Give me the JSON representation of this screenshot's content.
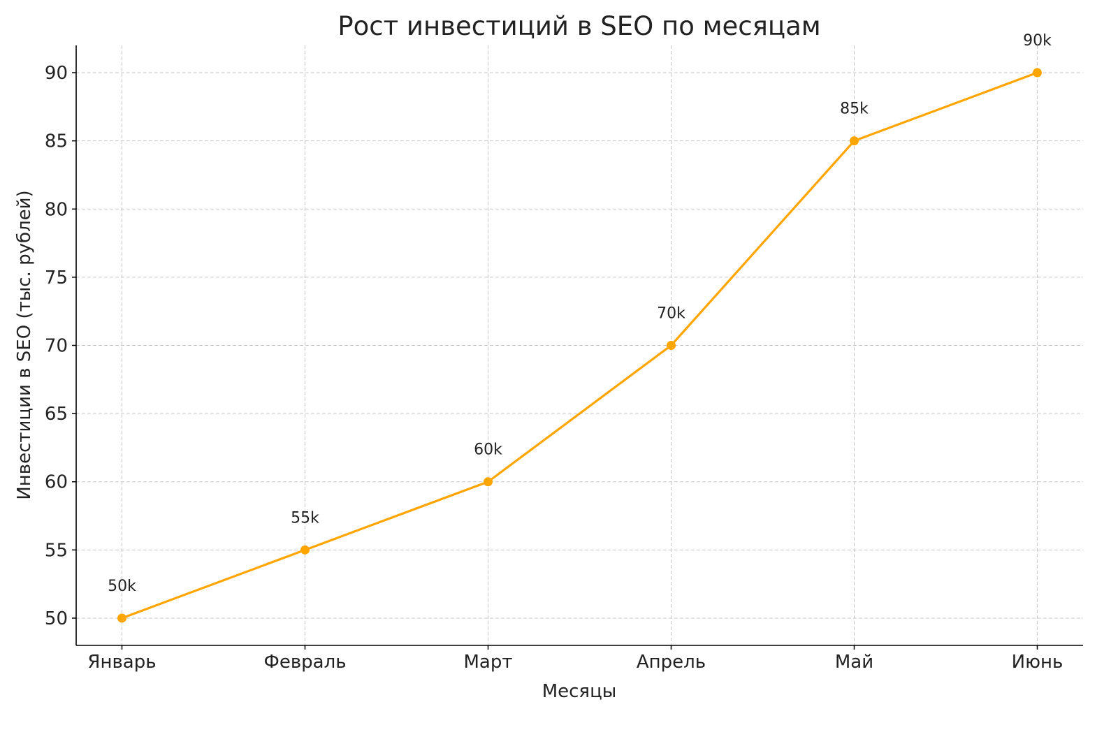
{
  "chart_data": {
    "type": "line",
    "title": "Рост инвестиций в SEO по месяцам",
    "xlabel": "Месяцы",
    "ylabel": "Инвестиции в SEO (тыс. рублей)",
    "categories": [
      "Январь",
      "Февраль",
      "Март",
      "Апрель",
      "Май",
      "Июнь"
    ],
    "values": [
      50,
      55,
      60,
      70,
      85,
      90
    ],
    "data_labels": [
      "50k",
      "55k",
      "60k",
      "70k",
      "85k",
      "90k"
    ],
    "yticks": [
      50,
      55,
      60,
      65,
      70,
      75,
      80,
      85,
      90
    ],
    "ylim": [
      48,
      92
    ],
    "grid": true,
    "color": "#FFA500",
    "marker": "circle"
  }
}
